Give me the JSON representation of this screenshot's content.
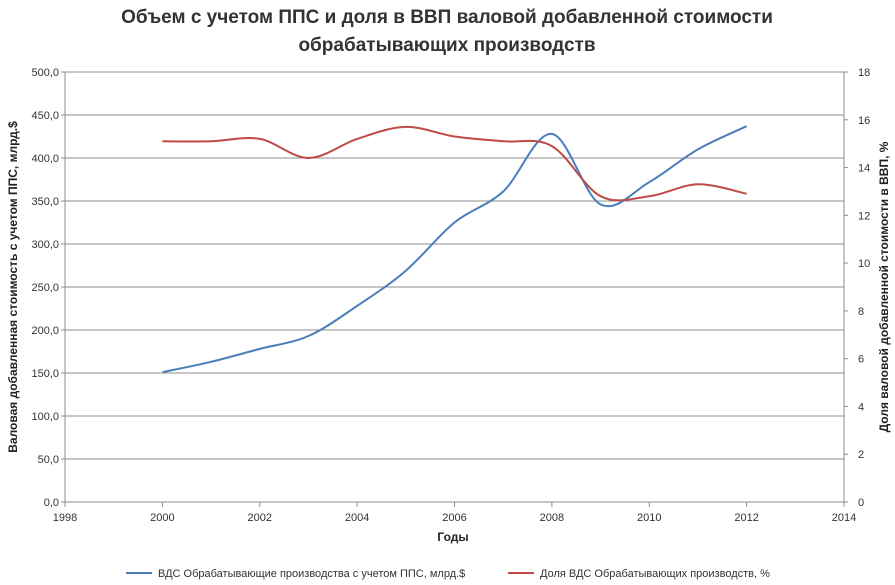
{
  "chart_data": {
    "type": "line",
    "title_line1": "Объем с учетом ППС и доля в ВВП валовой добавленной стоимости",
    "title_line2": "обрабатывающих производств",
    "xlabel": "Годы",
    "ylabel_left": "Валовая добавленная стоимость с учетом ППС, млрд.$",
    "ylabel_right": "Доля валовой добавленной стоимости в ВВП, %",
    "xlim": [
      1998,
      2014
    ],
    "x_ticks": [
      1998,
      2000,
      2002,
      2004,
      2006,
      2008,
      2010,
      2012,
      2014
    ],
    "ylim_left": [
      0,
      500
    ],
    "y_ticks_left": [
      "0,0",
      "50,0",
      "100,0",
      "150,0",
      "200,0",
      "250,0",
      "300,0",
      "350,0",
      "400,0",
      "450,0",
      "500,0"
    ],
    "ylim_right": [
      0,
      18
    ],
    "y_ticks_right": [
      "0",
      "2",
      "4",
      "6",
      "8",
      "10",
      "12",
      "14",
      "16",
      "18"
    ],
    "grid": true,
    "legend_position": "bottom",
    "series": [
      {
        "name": "ВДС Обрабатывающие производства с учетом ППС, млрд.$",
        "axis": "left",
        "color": "#4a7ebb",
        "x": [
          2000,
          2001,
          2002,
          2003,
          2004,
          2005,
          2006,
          2007,
          2008,
          2009,
          2010,
          2011,
          2012
        ],
        "values": [
          151,
          163,
          178,
          193,
          228,
          269,
          325,
          361,
          428,
          346,
          372,
          410,
          437
        ]
      },
      {
        "name": "Доля ВДС Обрабатывающих производств, %",
        "axis": "right",
        "color": "#be4b48",
        "x": [
          2000,
          2001,
          2002,
          2003,
          2004,
          2005,
          2006,
          2007,
          2008,
          2009,
          2010,
          2011,
          2012
        ],
        "values": [
          15.1,
          15.1,
          15.2,
          14.4,
          15.2,
          15.7,
          15.3,
          15.1,
          14.9,
          12.8,
          12.8,
          13.3,
          12.9
        ]
      }
    ]
  }
}
